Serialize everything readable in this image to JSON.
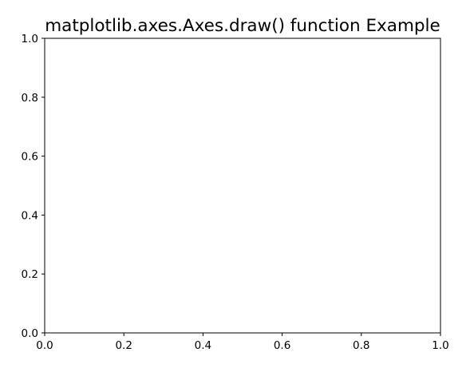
{
  "chart_data": {
    "type": "line",
    "title": "matplotlib.axes.Axes.draw() function Example",
    "xlabel": "",
    "ylabel": "",
    "xlim": [
      0.0,
      1.0
    ],
    "ylim": [
      0.0,
      1.0
    ],
    "x_ticks": [
      0.0,
      0.2,
      0.4,
      0.6,
      0.8,
      1.0
    ],
    "y_ticks": [
      0.0,
      0.2,
      0.4,
      0.6,
      0.8,
      1.0
    ],
    "x_tick_labels": [
      "0.0",
      "0.2",
      "0.4",
      "0.6",
      "0.8",
      "1.0"
    ],
    "y_tick_labels": [
      "0.0",
      "0.2",
      "0.4",
      "0.6",
      "0.8",
      "1.0"
    ],
    "series": [],
    "grid": false,
    "legend": "none"
  }
}
